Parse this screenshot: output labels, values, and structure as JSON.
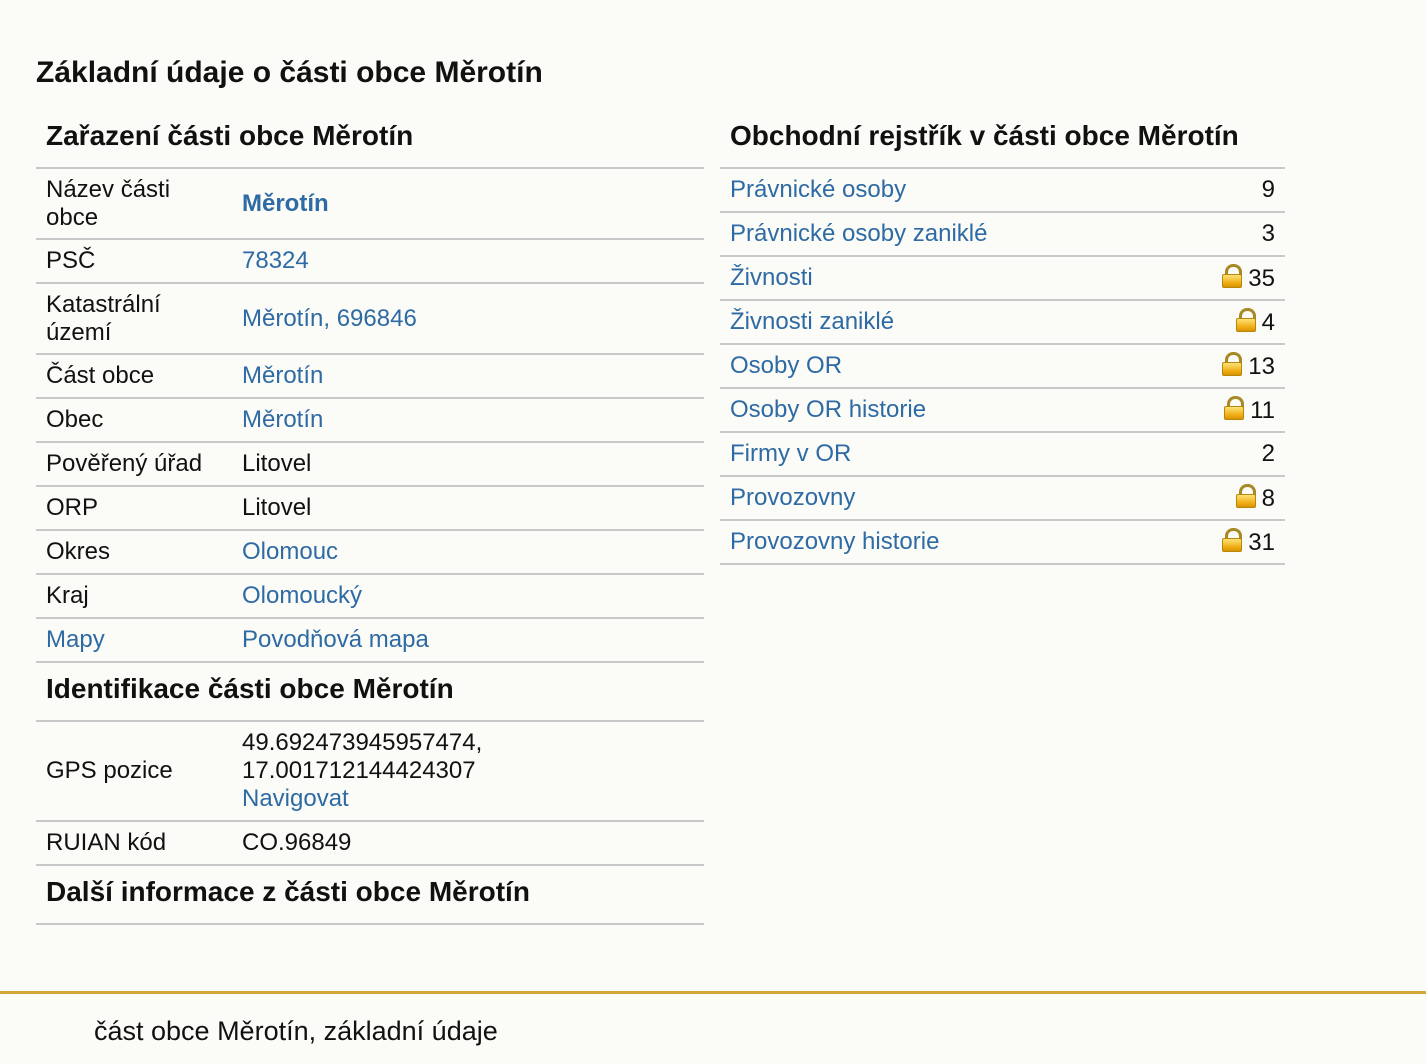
{
  "page": {
    "title": "Základní údaje o části obce Měrotín"
  },
  "zarazeni": {
    "heading": "Zařazení části obce Měrotín",
    "rows": [
      {
        "label": "Název části obce",
        "value": "Měrotín"
      },
      {
        "label": "PSČ",
        "value": "78324"
      },
      {
        "label": "Katastrální území",
        "value": "Měrotín, 696846"
      },
      {
        "label": "Část obce",
        "value": "Měrotín"
      },
      {
        "label": "Obec",
        "value": "Měrotín"
      },
      {
        "label": "Pověřený úřad",
        "value": "Litovel"
      },
      {
        "label": "ORP",
        "value": "Litovel"
      },
      {
        "label": "Okres",
        "value": "Olomouc"
      },
      {
        "label": "Kraj",
        "value": "Olomoucký"
      },
      {
        "label": "Mapy",
        "value": "Povodňová mapa"
      }
    ]
  },
  "identifikace": {
    "heading": "Identifikace části obce Měrotín",
    "gps_label": "GPS pozice",
    "gps_lat": "49.692473945957474,",
    "gps_lon": "17.001712144424307",
    "gps_link": "Navigovat",
    "ruian_label": "RUIAN kód",
    "ruian_value": "CO.96849"
  },
  "dalsi": {
    "heading": "Další informace z části obce Měrotín"
  },
  "rejstrik": {
    "heading": "Obchodní rejstřík v části obce Měrotín",
    "rows": [
      {
        "label": "Právnické osoby",
        "count": "9",
        "locked": false
      },
      {
        "label": "Právnické osoby zaniklé",
        "count": "3",
        "locked": false
      },
      {
        "label": "Živnosti",
        "count": "35",
        "locked": true
      },
      {
        "label": "Živnosti zaniklé",
        "count": "4",
        "locked": true
      },
      {
        "label": "Osoby OR",
        "count": "13",
        "locked": true
      },
      {
        "label": "Osoby OR historie",
        "count": "11",
        "locked": true
      },
      {
        "label": "Firmy v OR",
        "count": "2",
        "locked": false
      },
      {
        "label": "Provozovny",
        "count": "8",
        "locked": true
      },
      {
        "label": "Provozovny historie",
        "count": "31",
        "locked": true
      }
    ],
    "lock_icon": "lock-icon"
  },
  "footer": {
    "text": "část obce Měrotín, základní údaje"
  },
  "colors": {
    "link": "#2e6aa3",
    "footer_line": "#d4a63a",
    "background": "#fbfbf7"
  }
}
